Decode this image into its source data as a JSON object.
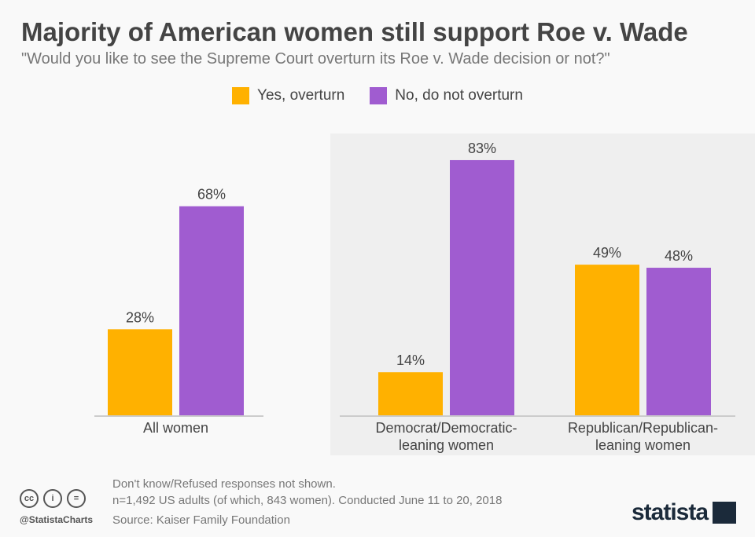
{
  "chart_data": {
    "type": "bar",
    "title": "Majority of American women still support Roe v. Wade",
    "subtitle": "\"Would you like to see the Supreme Court overturn its Roe v. Wade decision or not?\"",
    "categories": [
      [
        "All women"
      ],
      [
        "Democrat/Democratic-",
        "leaning women"
      ],
      [
        "Republican/Republican-",
        "leaning women"
      ]
    ],
    "series": [
      {
        "name": "Yes, overturn",
        "color": "#ffb100",
        "values": [
          28,
          14,
          49
        ]
      },
      {
        "name": "No, do not overturn",
        "color": "#a05cd0",
        "values": [
          68,
          83,
          48
        ]
      }
    ],
    "value_suffix": "%",
    "ylim": [
      0,
      100
    ],
    "grid": false,
    "legend": "top-center",
    "highlight_panel_color": "#efefef"
  },
  "footer": {
    "note1": "Don't know/Refused responses not shown.",
    "note2": "n=1,492 US adults (of which, 843 women). Conducted June 11 to 20, 2018",
    "source": "Source: Kaiser Family Foundation",
    "handle": "@StatistaCharts",
    "brand": "statista"
  }
}
